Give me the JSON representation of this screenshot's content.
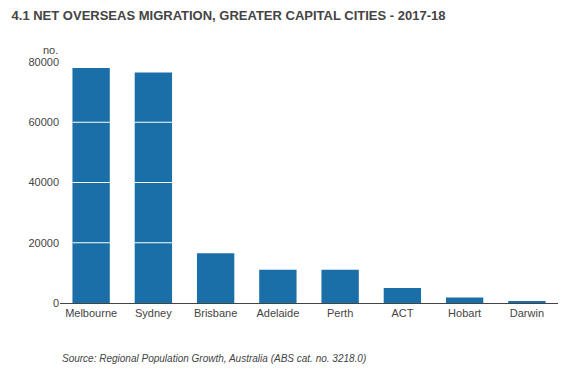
{
  "chart_data": {
    "type": "bar",
    "title": "4.1 NET OVERSEAS MIGRATION, GREATER CAPITAL CITIES - 2017-18",
    "ylabel": "no.",
    "categories": [
      "Melbourne",
      "Sydney",
      "Brisbane",
      "Adelaide",
      "Perth",
      "ACT",
      "Hobart",
      "Darwin"
    ],
    "values": [
      78000,
      76500,
      16500,
      11000,
      11000,
      5000,
      1800,
      500
    ],
    "color": "#1B6FA8",
    "ylim": [
      0,
      80000
    ],
    "yticks": [
      0,
      20000,
      40000,
      60000,
      80000
    ],
    "grid": false,
    "source": "Source: Regional Population Growth, Australia (ABS cat. no. 3218.0)"
  }
}
